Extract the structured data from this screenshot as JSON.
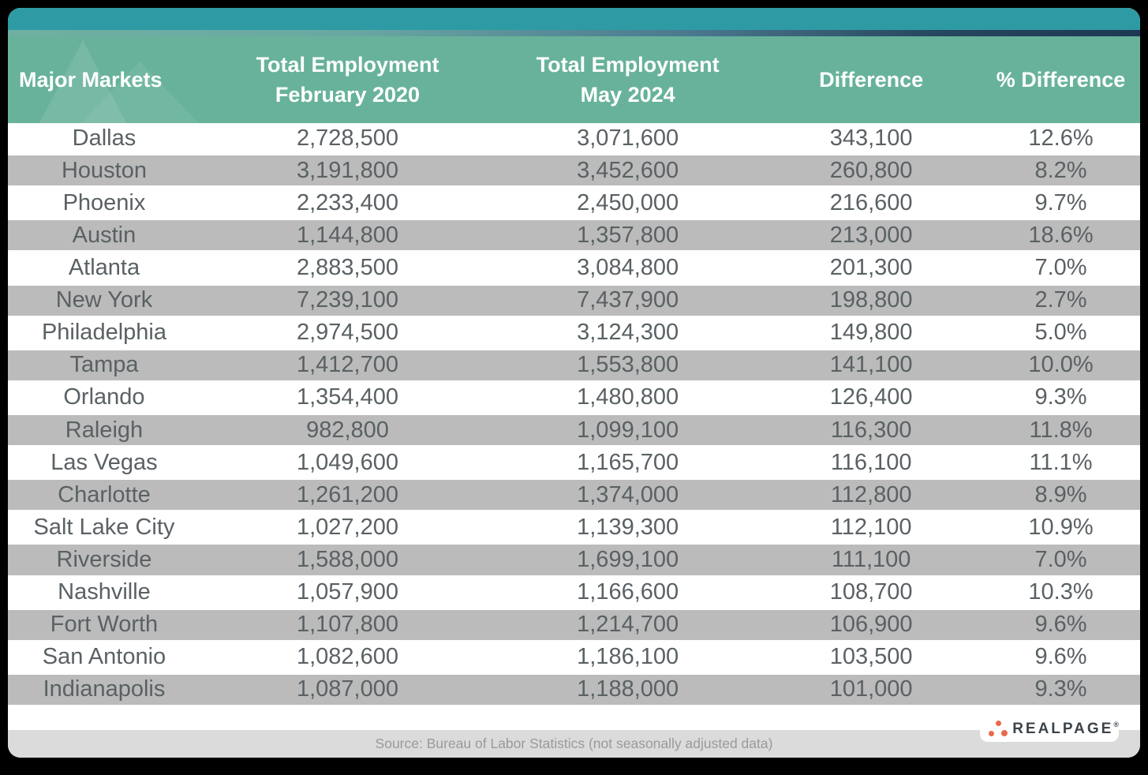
{
  "header": {
    "col_market": "Major Markets",
    "col_feb_line1": "Total Employment",
    "col_feb_line2": "February 2020",
    "col_may_line1": "Total Employment",
    "col_may_line2": "May 2024",
    "col_diff": "Difference",
    "col_pct": "% Difference"
  },
  "footer": {
    "source": "Source: Bureau of Labor Statistics (not seasonally adjusted data)",
    "logo_text": "REALPAGE",
    "logo_mark": "®"
  },
  "colors": {
    "topbar_teal": "#2E9BA4",
    "strip_navy": "#1D3853",
    "header_green": "#68B29B",
    "row_gray": "#BBBBBB",
    "footer_gray": "#DBDBDB",
    "text_dark": "#5A6164",
    "logo_orange": "#E8694B",
    "background": "#000000"
  },
  "chart_data": {
    "type": "table",
    "columns": [
      "Major Markets",
      "Total Employment February 2020",
      "Total Employment May 2024",
      "Difference",
      "% Difference"
    ],
    "rows": [
      {
        "market": "Dallas",
        "feb2020": "2,728,500",
        "may2024": "3,071,600",
        "difference": "343,100",
        "pct_difference": "12.6%"
      },
      {
        "market": "Houston",
        "feb2020": "3,191,800",
        "may2024": "3,452,600",
        "difference": "260,800",
        "pct_difference": "8.2%"
      },
      {
        "market": "Phoenix",
        "feb2020": "2,233,400",
        "may2024": "2,450,000",
        "difference": "216,600",
        "pct_difference": "9.7%"
      },
      {
        "market": "Austin",
        "feb2020": "1,144,800",
        "may2024": "1,357,800",
        "difference": "213,000",
        "pct_difference": "18.6%"
      },
      {
        "market": "Atlanta",
        "feb2020": "2,883,500",
        "may2024": "3,084,800",
        "difference": "201,300",
        "pct_difference": "7.0%"
      },
      {
        "market": "New York",
        "feb2020": "7,239,100",
        "may2024": "7,437,900",
        "difference": "198,800",
        "pct_difference": "2.7%"
      },
      {
        "market": "Philadelphia",
        "feb2020": "2,974,500",
        "may2024": "3,124,300",
        "difference": "149,800",
        "pct_difference": "5.0%"
      },
      {
        "market": "Tampa",
        "feb2020": "1,412,700",
        "may2024": "1,553,800",
        "difference": "141,100",
        "pct_difference": "10.0%"
      },
      {
        "market": "Orlando",
        "feb2020": "1,354,400",
        "may2024": "1,480,800",
        "difference": "126,400",
        "pct_difference": "9.3%"
      },
      {
        "market": "Raleigh",
        "feb2020": "982,800",
        "may2024": "1,099,100",
        "difference": "116,300",
        "pct_difference": "11.8%"
      },
      {
        "market": "Las Vegas",
        "feb2020": "1,049,600",
        "may2024": "1,165,700",
        "difference": "116,100",
        "pct_difference": "11.1%"
      },
      {
        "market": "Charlotte",
        "feb2020": "1,261,200",
        "may2024": "1,374,000",
        "difference": "112,800",
        "pct_difference": "8.9%"
      },
      {
        "market": "Salt Lake City",
        "feb2020": "1,027,200",
        "may2024": "1,139,300",
        "difference": "112,100",
        "pct_difference": "10.9%"
      },
      {
        "market": "Riverside",
        "feb2020": "1,588,000",
        "may2024": "1,699,100",
        "difference": "111,100",
        "pct_difference": "7.0%"
      },
      {
        "market": "Nashville",
        "feb2020": "1,057,900",
        "may2024": "1,166,600",
        "difference": "108,700",
        "pct_difference": "10.3%"
      },
      {
        "market": "Fort Worth",
        "feb2020": "1,107,800",
        "may2024": "1,214,700",
        "difference": "106,900",
        "pct_difference": "9.6%"
      },
      {
        "market": "San Antonio",
        "feb2020": "1,082,600",
        "may2024": "1,186,100",
        "difference": "103,500",
        "pct_difference": "9.6%"
      },
      {
        "market": "Indianapolis",
        "feb2020": "1,087,000",
        "may2024": "1,188,000",
        "difference": "101,000",
        "pct_difference": "9.3%"
      }
    ]
  }
}
